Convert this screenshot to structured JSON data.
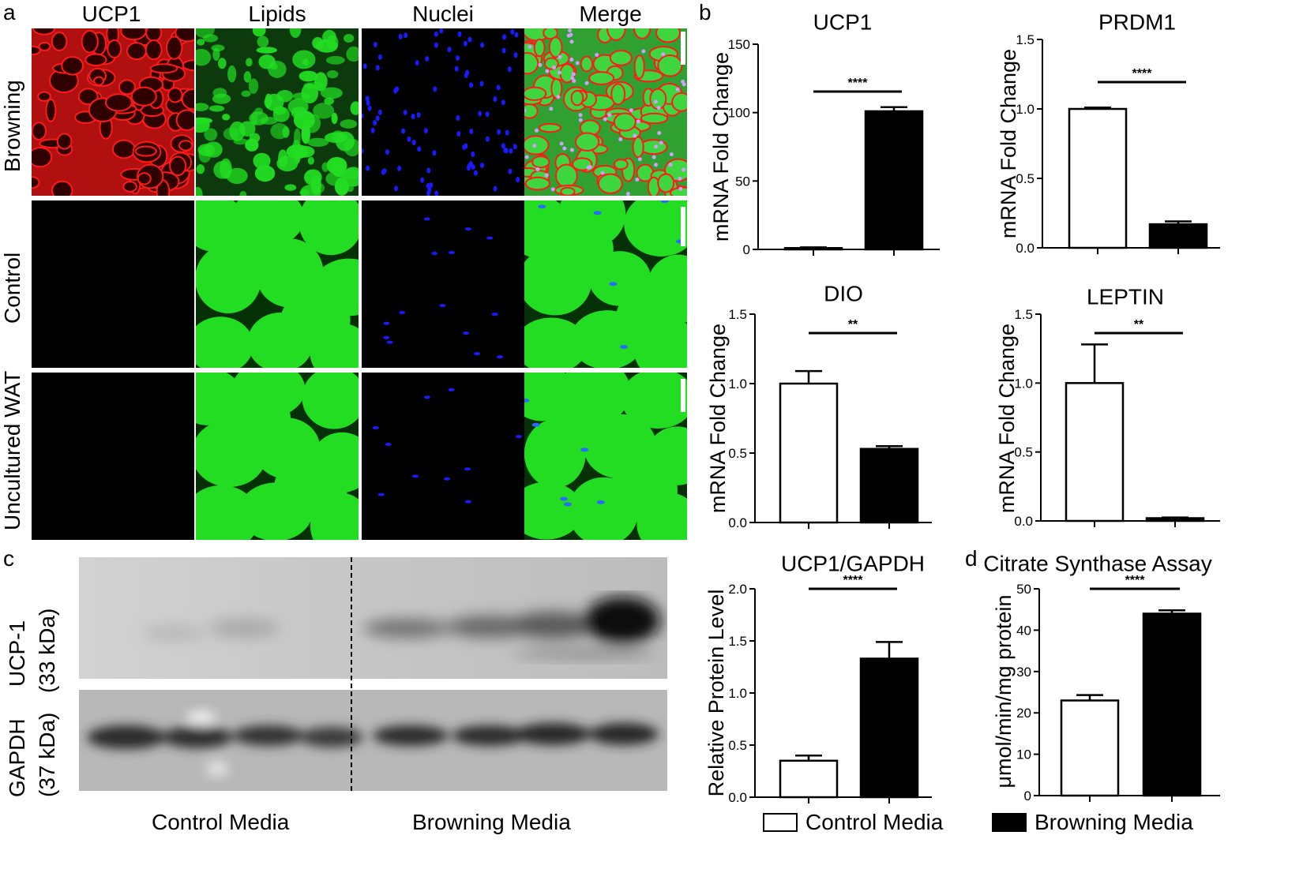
{
  "panels": {
    "a": {
      "letter": "a",
      "columns": [
        "UCP1",
        "Lipids",
        "Nuclei",
        "Merge"
      ],
      "rows": [
        "Browning",
        "Control",
        "Uncultured WAT"
      ]
    },
    "b": {
      "letter": "b"
    },
    "c": {
      "letter": "c",
      "blot_labels": {
        "ucp": "UCP-1\n(33 kDa)",
        "ucp_line1": "UCP-1",
        "ucp_line2": "(33 kDa)",
        "gapdh_line1": "GAPDH",
        "gapdh_line2": "(37 kDa)"
      },
      "group_labels": [
        "Control Media",
        "Browning Media"
      ]
    },
    "d": {
      "letter": "d"
    }
  },
  "colors": {
    "ucp1": "#ff1a1a",
    "lipids": "#22dd22",
    "nuclei": "#1a1aff",
    "control_bar": "#ffffff",
    "browning_bar": "#000000"
  },
  "legend": {
    "control": "Control Media",
    "browning": "Browning Media"
  },
  "chart_data": [
    {
      "type": "bar",
      "title": "UCP1",
      "ylabel": "mRNA Fold Change",
      "categories": [
        "Control Media",
        "Browning Media"
      ],
      "values": [
        1,
        101
      ],
      "errors": [
        0.5,
        3
      ],
      "ylim": [
        0,
        150
      ],
      "yticks": [
        "0",
        "50",
        "100",
        "150"
      ],
      "significance": "****"
    },
    {
      "type": "bar",
      "title": "PRDM1",
      "ylabel": "mRNA Fold Change",
      "categories": [
        "Control Media",
        "Browning Media"
      ],
      "values": [
        1.0,
        0.17
      ],
      "errors": [
        0.01,
        0.02
      ],
      "ylim": [
        0,
        1.5
      ],
      "yticks": [
        "0.0",
        "0.5",
        "1.0",
        "1.5"
      ],
      "significance": "****"
    },
    {
      "type": "bar",
      "title": "DIO",
      "ylabel": "mRNA Fold Change",
      "categories": [
        "Control Media",
        "Browning Media"
      ],
      "values": [
        1.0,
        0.53
      ],
      "errors": [
        0.09,
        0.02
      ],
      "ylim": [
        0,
        1.5
      ],
      "yticks": [
        "0.0",
        "0.5",
        "1.0",
        "1.5"
      ],
      "significance": "**"
    },
    {
      "type": "bar",
      "title": "LEPTIN",
      "ylabel": "mRNA Fold Change",
      "categories": [
        "Control Media",
        "Browning Media"
      ],
      "values": [
        1.0,
        0.02
      ],
      "errors": [
        0.28,
        0.005
      ],
      "ylim": [
        0,
        1.5
      ],
      "yticks": [
        "0.0",
        "0.5",
        "1.0",
        "1.5"
      ],
      "significance": "**"
    },
    {
      "type": "bar",
      "title": "UCP1/GAPDH",
      "ylabel": "Relative Protein Level",
      "categories": [
        "Control Media",
        "Browning Media"
      ],
      "values": [
        0.35,
        1.33
      ],
      "errors": [
        0.05,
        0.16
      ],
      "ylim": [
        0,
        2.0
      ],
      "yticks": [
        "0.0",
        "0.5",
        "1.0",
        "1.5",
        "2.0"
      ],
      "significance": "****"
    },
    {
      "type": "bar",
      "title": "Citrate Synthase Assay",
      "ylabel": "μmol/min/mg protein",
      "categories": [
        "Control Media",
        "Browning Media"
      ],
      "values": [
        23,
        44
      ],
      "errors": [
        1.3,
        0.8
      ],
      "ylim": [
        0,
        50
      ],
      "yticks": [
        "0",
        "10",
        "20",
        "30",
        "40",
        "50"
      ],
      "significance": "****"
    }
  ]
}
